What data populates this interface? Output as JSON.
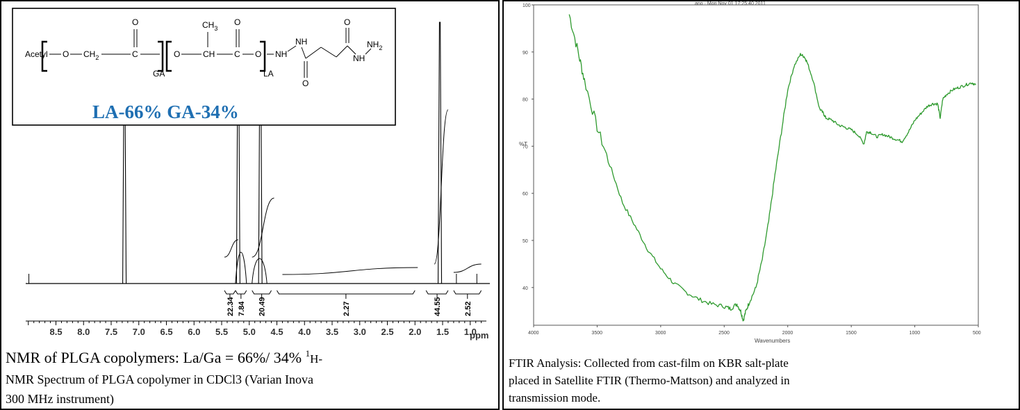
{
  "nmr_panel": {
    "structure": {
      "group_acetyl": "Acetyl",
      "o": "O",
      "ch2": "CH",
      "ch2_sub": "2",
      "c": "C",
      "ch": "CH",
      "ch3": "CH",
      "ch3_sub": "3",
      "ga": "GA",
      "la": "LA",
      "nh": "NH",
      "nh2": "NH",
      "nh2_sub": "2"
    },
    "composition_label": "LA-66% GA-34%",
    "caption_line1_a": "NMR of PLGA copolymers: La/Ga = 66%/ 34% ",
    "caption_sup": "1",
    "caption_line1_b": "H-",
    "caption_line2": "NMR Spectrum of PLGA copolymer in CDCl3 (Varian Inova",
    "caption_line3": "300 MHz instrument)",
    "x_unit": "ppm",
    "colors": {
      "label_blue": "#1f6fb2",
      "spectrum": "#000000"
    }
  },
  "ftir_panel": {
    "header_text": "ano · Mon Nov 01 17:25:40 2011",
    "ylabel_vertical": "%T",
    "xlabel": "Wavenumbers",
    "caption_line1": "FTIR Analysis: Collected from cast-film on KBR salt-plate",
    "caption_line2": "placed in Satellite FTIR (Thermo-Mattson) and analyzed in",
    "caption_line3": "transmission mode.",
    "colors": {
      "spectrum": "#2e9a2e"
    }
  },
  "chart_data": [
    {
      "type": "line",
      "title": "",
      "xlabel": "ppm",
      "ylabel": "",
      "x_reversed": true,
      "xlim": [
        9.0,
        0.0
      ],
      "x_ticks": [
        "8.5",
        "8.0",
        "7.5",
        "7.0",
        "6.5",
        "6.0",
        "5.5",
        "5.0",
        "4.5",
        "4.0",
        "3.5",
        "3.0",
        "2.5",
        "2.0",
        "1.5",
        "1.0"
      ],
      "x_tick_values": [
        8.5,
        8.0,
        7.5,
        7.0,
        6.5,
        6.0,
        5.5,
        5.0,
        4.5,
        4.0,
        3.5,
        3.0,
        2.5,
        2.0,
        1.5,
        1.0
      ],
      "peaks_ppm": [
        7.26,
        5.2,
        4.8,
        1.55
      ],
      "integrals": [
        {
          "label": "22.34",
          "from": 5.45,
          "to": 5.25
        },
        {
          "label": "7.84",
          "from": 5.25,
          "to": 5.05
        },
        {
          "label": "20.49",
          "from": 4.95,
          "to": 4.6
        },
        {
          "label": "2.27",
          "from": 4.5,
          "to": 2.0
        },
        {
          "label": "44.55",
          "from": 1.8,
          "to": 1.4
        },
        {
          "label": "2.52",
          "from": 1.3,
          "to": 0.8
        }
      ],
      "grid": false
    },
    {
      "type": "line",
      "title": "",
      "xlabel": "Wavenumbers",
      "ylabel": "%T",
      "x_reversed": true,
      "xlim": [
        4000,
        500
      ],
      "ylim": [
        32,
        100
      ],
      "x_ticks": [
        "4000",
        "3500",
        "3000",
        "2500",
        "2000",
        "1500",
        "1000",
        "500"
      ],
      "x_tick_values": [
        4000,
        3500,
        3000,
        2500,
        2000,
        1500,
        1000,
        500
      ],
      "y_ticks": [
        "100",
        "90",
        "80",
        "70",
        "60",
        "50",
        "40"
      ],
      "y_tick_values": [
        100,
        90,
        80,
        70,
        60,
        50,
        40
      ],
      "series": [
        {
          "x": [
            3720,
            3650,
            3600,
            3500,
            3400,
            3300,
            3200,
            3100,
            3000,
            2900,
            2800,
            2700,
            2600,
            2500,
            2450,
            2400,
            2370,
            2350,
            2330,
            2300,
            2250,
            2200,
            2150,
            2100,
            2050,
            2000,
            1950,
            1900,
            1870,
            1850,
            1800,
            1750,
            1720,
            1700,
            1650,
            1600,
            1550,
            1500,
            1450,
            1400,
            1380,
            1350,
            1300,
            1250,
            1200,
            1150,
            1100,
            1050,
            1000,
            950,
            900,
            860,
            820,
            800,
            780,
            750,
            700,
            650,
            600,
            550,
            520
          ],
          "y": [
            98,
            90,
            84,
            74,
            66,
            58,
            53,
            48,
            44,
            41,
            39,
            37.5,
            36.5,
            36,
            35.5,
            36.5,
            35,
            33,
            35,
            37,
            40,
            46,
            54,
            64,
            73,
            82,
            87,
            89.5,
            89,
            88,
            84,
            78,
            77,
            76,
            75.5,
            74.5,
            74,
            73.5,
            72.5,
            70.5,
            73,
            73,
            72,
            72.5,
            72,
            71.5,
            71,
            73,
            75.5,
            77,
            78.5,
            79,
            79,
            76,
            80,
            81,
            82,
            82.5,
            83,
            83.5,
            83
          ]
        }
      ],
      "grid": false
    }
  ]
}
